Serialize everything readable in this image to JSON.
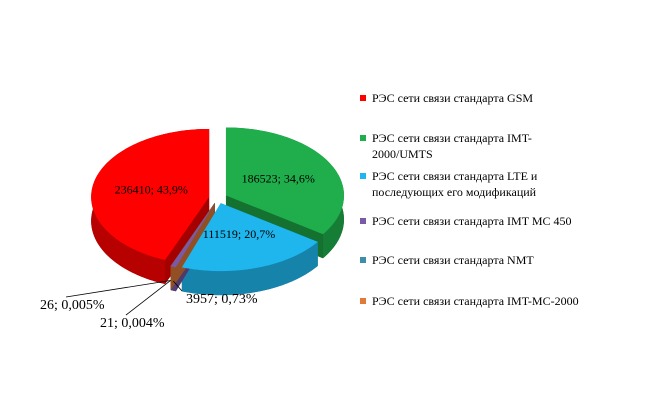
{
  "chart_data": {
    "type": "pie3d",
    "categories": [
      "РЭС сети связи  стандарта GSM",
      "РЭС сети связи  стандарта IMT-2000/UMTS",
      "РЭС сети связи стандарта LTE и последующих его модификаций",
      "РЭС сети связи  стандарта IMT MC 450",
      "РЭС сети связи  стандарта NMT",
      "РЭС сети связи  стандарта IMT-MC-2000"
    ],
    "values": [
      236410,
      186523,
      111519,
      3957,
      21,
      26
    ],
    "value_labels": [
      "236410;  43,9%",
      "186523;  34,6%",
      "111519;  20,7%",
      "3957; 0,73%",
      "21; 0,004%",
      "26; 0,005%"
    ],
    "colors": [
      "#ff0000",
      "#1fae4b",
      "#1fb6ee",
      "#7a5aa6",
      "#3d8ea6",
      "#e07a36"
    ],
    "legend": "right"
  }
}
